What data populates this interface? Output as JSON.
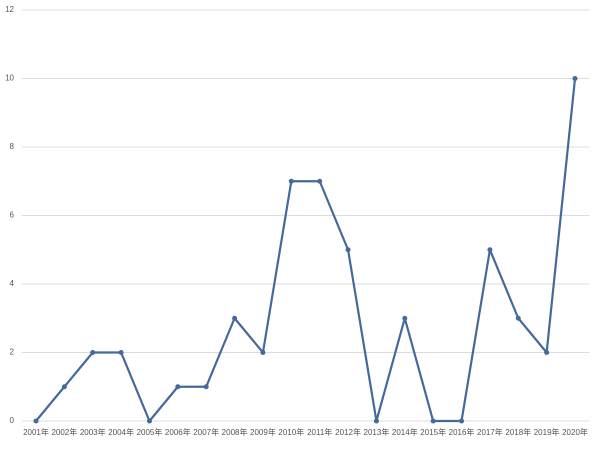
{
  "chart_data": {
    "type": "line",
    "categories": [
      "2001年",
      "2002年",
      "2003年",
      "2004年",
      "2005年",
      "2006年",
      "2007年",
      "2008年",
      "2009年",
      "2010年",
      "2011年",
      "2012年",
      "2013年",
      "2014年",
      "2015年",
      "2016年",
      "2017年",
      "2018年",
      "2019年",
      "2020年"
    ],
    "values": [
      0,
      1,
      2,
      2,
      0,
      1,
      1,
      3,
      2,
      7,
      7,
      5,
      0,
      3,
      0,
      0,
      5,
      3,
      2,
      10
    ],
    "color": "#44699a",
    "ylim": [
      0,
      12
    ],
    "yticks": [
      0,
      2,
      4,
      6,
      8,
      10,
      12
    ],
    "grid": true
  }
}
